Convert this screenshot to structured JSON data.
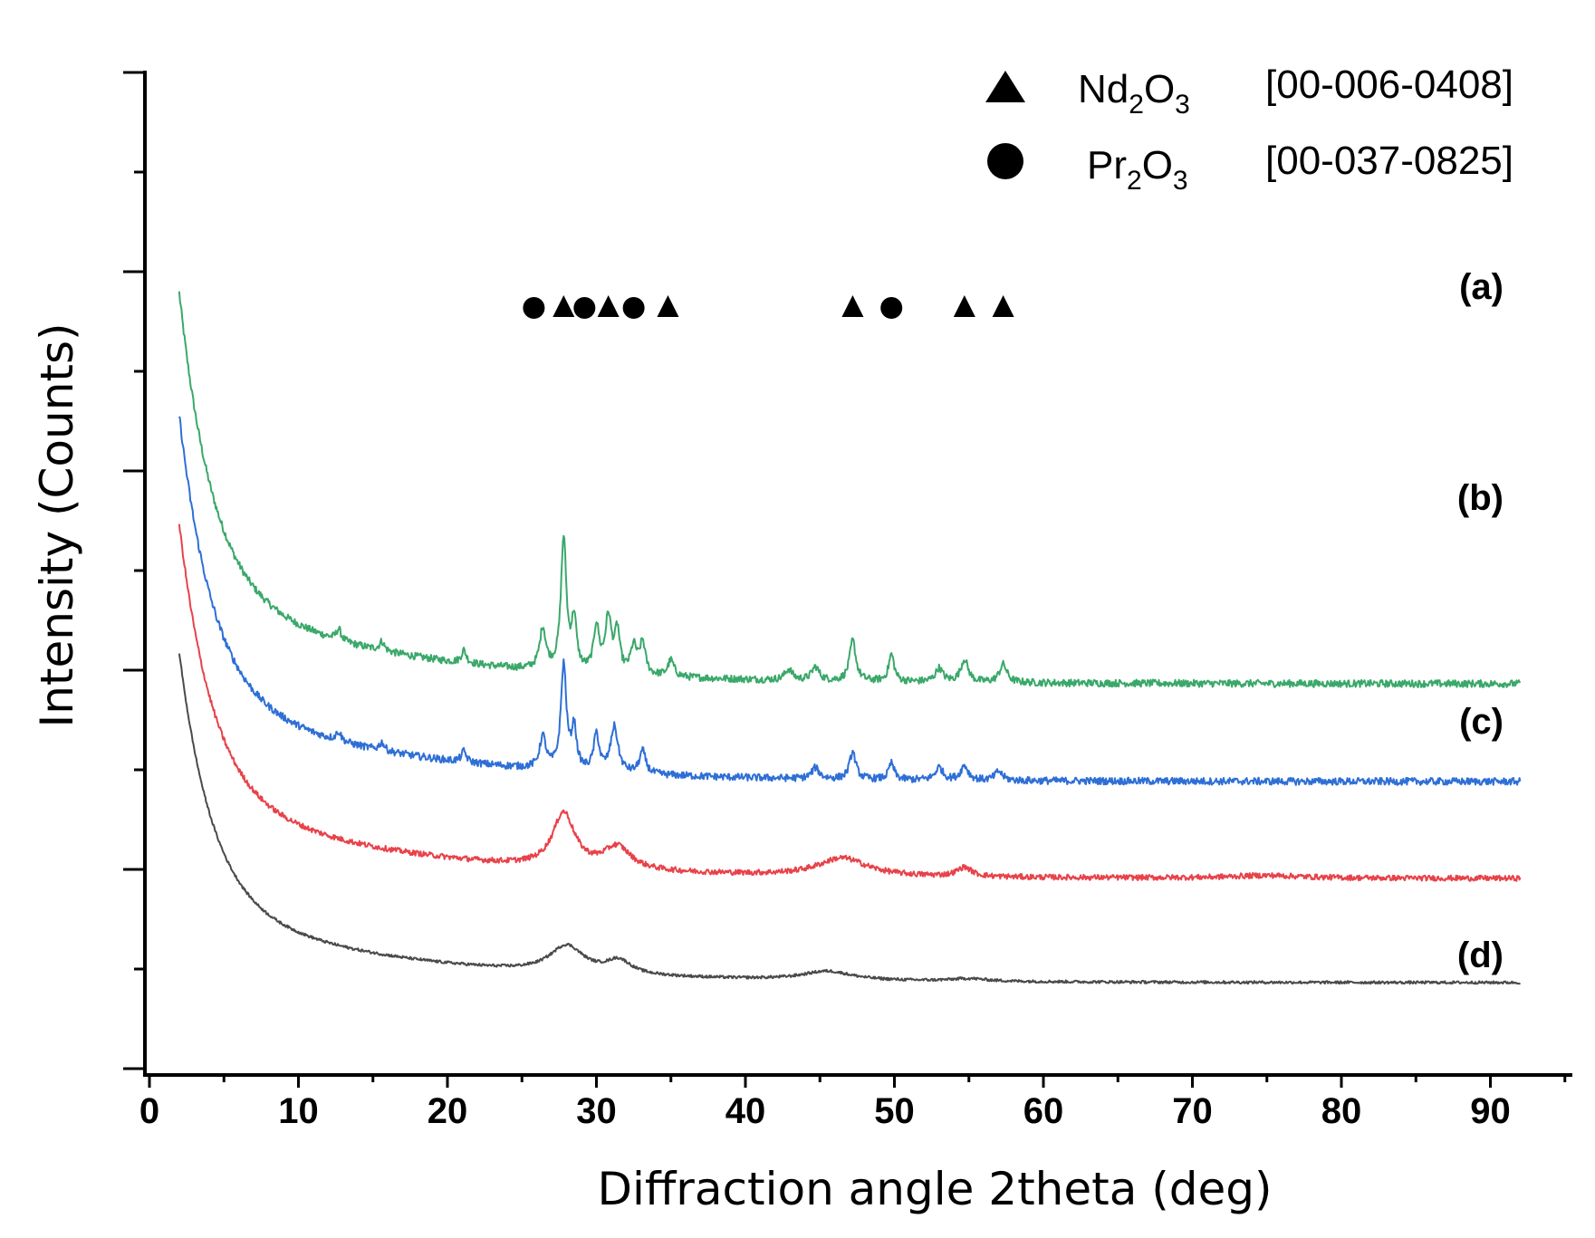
{
  "chart_data": {
    "type": "line",
    "title": "",
    "xlabel": "Diffraction angle 2theta (deg)",
    "ylabel": "Intensity (Counts)",
    "xlim": [
      0,
      95
    ],
    "xticks": [
      0,
      10,
      20,
      30,
      40,
      50,
      60,
      70,
      80,
      90
    ],
    "yticks_labeled": false,
    "grid": false,
    "series": [
      {
        "name": "(a)",
        "color": "#3aa86a",
        "baseline": 3.6,
        "background_amp": 3.2,
        "noise": 0.04,
        "peaks": [
          [
            12.7,
            0.12,
            0.2
          ],
          [
            15.6,
            0.1,
            0.2
          ],
          [
            21.1,
            0.14,
            0.2
          ],
          [
            26.4,
            0.45,
            0.25
          ],
          [
            27.8,
            1.45,
            0.22
          ],
          [
            28.5,
            0.55,
            0.2
          ],
          [
            30.0,
            0.5,
            0.22
          ],
          [
            30.8,
            0.6,
            0.25
          ],
          [
            31.4,
            0.45,
            0.2
          ],
          [
            32.5,
            0.3,
            0.25
          ],
          [
            33.1,
            0.35,
            0.22
          ],
          [
            35.0,
            0.18,
            0.25
          ],
          [
            42.9,
            0.12,
            0.3
          ],
          [
            44.7,
            0.15,
            0.3
          ],
          [
            47.2,
            0.45,
            0.25
          ],
          [
            49.8,
            0.3,
            0.22
          ],
          [
            53.0,
            0.15,
            0.3
          ],
          [
            54.7,
            0.25,
            0.3
          ],
          [
            57.3,
            0.2,
            0.3
          ]
        ]
      },
      {
        "name": "(b)",
        "color": "#2e6fd6",
        "baseline": 2.52,
        "background_amp": 3.0,
        "noise": 0.04,
        "peaks": [
          [
            12.7,
            0.1,
            0.2
          ],
          [
            15.6,
            0.09,
            0.2
          ],
          [
            21.1,
            0.12,
            0.2
          ],
          [
            26.4,
            0.35,
            0.25
          ],
          [
            27.8,
            1.15,
            0.22
          ],
          [
            28.5,
            0.45,
            0.2
          ],
          [
            30.0,
            0.4,
            0.22
          ],
          [
            31.2,
            0.5,
            0.3
          ],
          [
            33.1,
            0.25,
            0.25
          ],
          [
            44.7,
            0.12,
            0.3
          ],
          [
            47.2,
            0.3,
            0.25
          ],
          [
            49.8,
            0.18,
            0.22
          ],
          [
            53.0,
            0.14,
            0.3
          ],
          [
            54.7,
            0.16,
            0.3
          ],
          [
            57.0,
            0.1,
            0.3
          ]
        ]
      },
      {
        "name": "(c)",
        "color": "#e8424a",
        "baseline": 1.45,
        "background_amp": 2.9,
        "noise": 0.03,
        "peaks": [
          [
            27.8,
            0.6,
            0.9
          ],
          [
            31.4,
            0.25,
            1.1
          ],
          [
            46.5,
            0.2,
            2.0
          ],
          [
            54.7,
            0.1,
            0.6
          ],
          [
            75.0,
            0.03,
            3.0
          ]
        ]
      },
      {
        "name": "(d)",
        "color": "#4a4a4a",
        "baseline": 0.3,
        "background_amp": 2.7,
        "noise": 0.015,
        "peaks": [
          [
            28.0,
            0.3,
            1.4
          ],
          [
            31.5,
            0.15,
            1.0
          ],
          [
            45.5,
            0.1,
            2.0
          ],
          [
            55.0,
            0.03,
            1.5
          ]
        ]
      }
    ],
    "phase_markers": [
      {
        "phase": "Nd2O3",
        "symbol": "triangle",
        "x": [
          27.8,
          30.8,
          34.8,
          47.2,
          54.7,
          57.3
        ]
      },
      {
        "phase": "Pr2O3",
        "symbol": "circle",
        "x": [
          25.8,
          29.2,
          32.5,
          49.8
        ]
      }
    ],
    "legend": {
      "placement": "top-right",
      "entries": [
        {
          "symbol": "triangle",
          "base": "Nd",
          "sub1": "2",
          "mid": "O",
          "sub2": "3",
          "code": "[00-006-0408]"
        },
        {
          "symbol": "circle",
          "base": "Pr",
          "sub1": "2",
          "mid": "O",
          "sub2": "3",
          "code": "[00-037-0825]"
        }
      ]
    }
  }
}
